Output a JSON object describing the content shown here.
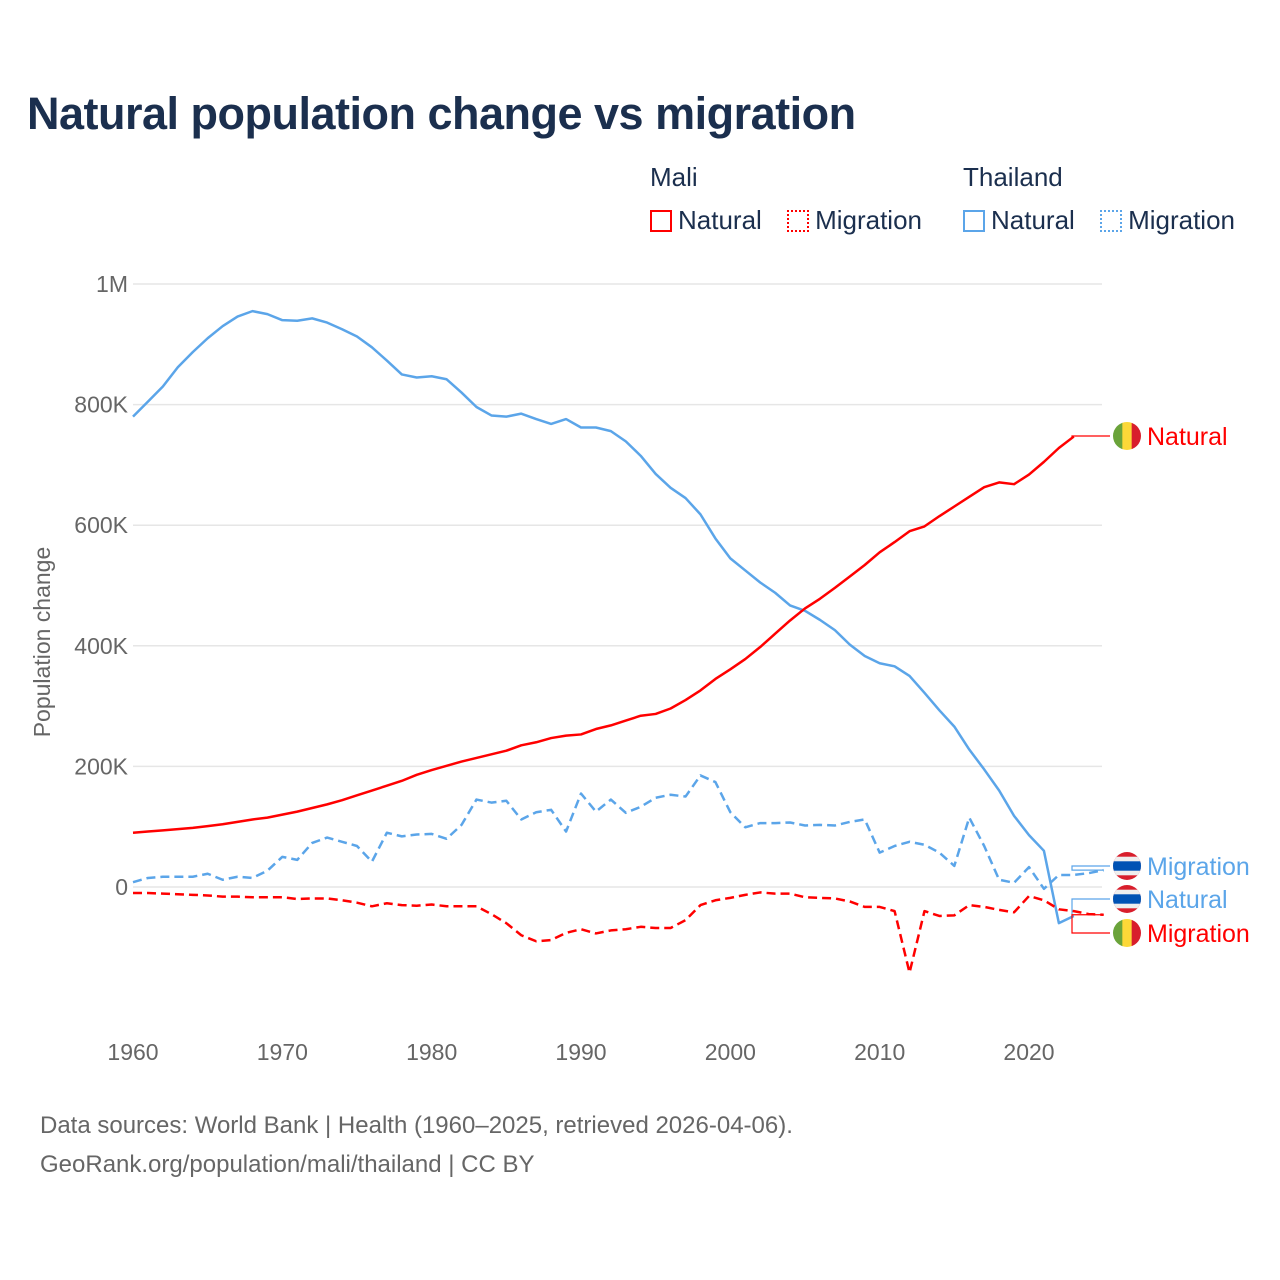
{
  "title": "Natural population change vs migration",
  "legend": {
    "groups": [
      {
        "name": "Mali",
        "items": [
          "Natural",
          "Migration"
        ]
      },
      {
        "name": "Thailand",
        "items": [
          "Natural",
          "Migration"
        ]
      }
    ]
  },
  "footer": {
    "line1": "Data sources: World Bank | Health (1960–2025, retrieved 2026-04-06).",
    "line2": "GeoRank.org/population/mali/thailand | CC BY"
  },
  "colors": {
    "mali": "#ff0000",
    "thailand": "#5ba5e9",
    "title": "#1b2f4e",
    "grid": "#e6e6e6",
    "tick": "#666666"
  },
  "chart_data": {
    "type": "line",
    "title": "Natural population change vs migration",
    "xlabel": "",
    "ylabel": "Population change",
    "xlim": [
      1960,
      2025
    ],
    "ylim": [
      -200000,
      1000000
    ],
    "grid": true,
    "x_ticks": [
      "1960",
      "1970",
      "1980",
      "1990",
      "2000",
      "2010",
      "2020"
    ],
    "y_ticks": [
      {
        "v": 0,
        "label": "0"
      },
      {
        "v": 200000,
        "label": "200K"
      },
      {
        "v": 400000,
        "label": "400K"
      },
      {
        "v": 600000,
        "label": "600K"
      },
      {
        "v": 800000,
        "label": "800K"
      },
      {
        "v": 1000000,
        "label": "1M"
      }
    ],
    "legend_position": "top-right",
    "series": [
      {
        "name": "Thailand Natural",
        "country": "thailand",
        "dashed": false,
        "end_label": "Natural",
        "start": 1960,
        "values": [
          780,
          805,
          830,
          862,
          887,
          910,
          930,
          946,
          955,
          950,
          940,
          939,
          943,
          936,
          925,
          913,
          895,
          873,
          850,
          845,
          847,
          842,
          820,
          796,
          782,
          780,
          785,
          776,
          768,
          776,
          762,
          762,
          756,
          739,
          715,
          685,
          662,
          645,
          618,
          578,
          545,
          525,
          505,
          488,
          467,
          458,
          443,
          426,
          402,
          383,
          371,
          366,
          350,
          322,
          293,
          266,
          228,
          195,
          160,
          118,
          86,
          60,
          -60,
          -48
        ]
      },
      {
        "name": "Mali Natural",
        "country": "mali",
        "dashed": false,
        "end_label": "Natural",
        "start": 1960,
        "values": [
          90,
          92,
          94,
          96,
          98,
          101,
          104,
          108,
          112,
          115,
          120,
          125,
          131,
          137,
          144,
          152,
          160,
          168,
          176,
          186,
          194,
          201,
          208,
          214,
          220,
          226,
          235,
          240,
          247,
          251,
          253,
          262,
          268,
          276,
          284,
          287,
          296,
          310,
          326,
          345,
          361,
          378,
          398,
          420,
          442,
          462,
          478,
          496,
          515,
          534,
          555,
          572,
          590,
          598,
          615,
          631,
          647,
          663,
          671,
          668,
          684,
          705,
          728,
          747
        ]
      },
      {
        "name": "Thailand Migration",
        "country": "thailand",
        "dashed": true,
        "end_label": "Migration",
        "start": 1960,
        "values": [
          8,
          15,
          17,
          17,
          17,
          22,
          12,
          17,
          15,
          27,
          50,
          45,
          73,
          82,
          75,
          68,
          42,
          90,
          84,
          87,
          88,
          80,
          103,
          145,
          140,
          143,
          112,
          124,
          128,
          92,
          155,
          125,
          145,
          123,
          133,
          148,
          153,
          150,
          185,
          174,
          124,
          99,
          106,
          106,
          107,
          102,
          103,
          102,
          108,
          112,
          57,
          68,
          75,
          70,
          57,
          35,
          115,
          68,
          12,
          7,
          33,
          -3,
          20,
          20,
          23,
          28
        ]
      },
      {
        "name": "Mali Migration",
        "country": "mali",
        "dashed": true,
        "end_label": "Migration",
        "start": 1960,
        "values": [
          -10,
          -10,
          -11,
          -12,
          -13,
          -14,
          -16,
          -16,
          -17,
          -17,
          -17,
          -20,
          -19,
          -19,
          -22,
          -26,
          -32,
          -27,
          -30,
          -31,
          -29,
          -32,
          -32,
          -32,
          -45,
          -60,
          -80,
          -90,
          -88,
          -76,
          -70,
          -77,
          -72,
          -70,
          -66,
          -68,
          -68,
          -55,
          -30,
          -22,
          -18,
          -13,
          -9,
          -11,
          -11,
          -17,
          -18,
          -19,
          -24,
          -33,
          -33,
          -40,
          -142,
          -40,
          -48,
          -47,
          -30,
          -33,
          -38,
          -42,
          -15,
          -22,
          -37,
          -40,
          -45,
          -46
        ]
      }
    ],
    "value_unit": "thousands"
  }
}
